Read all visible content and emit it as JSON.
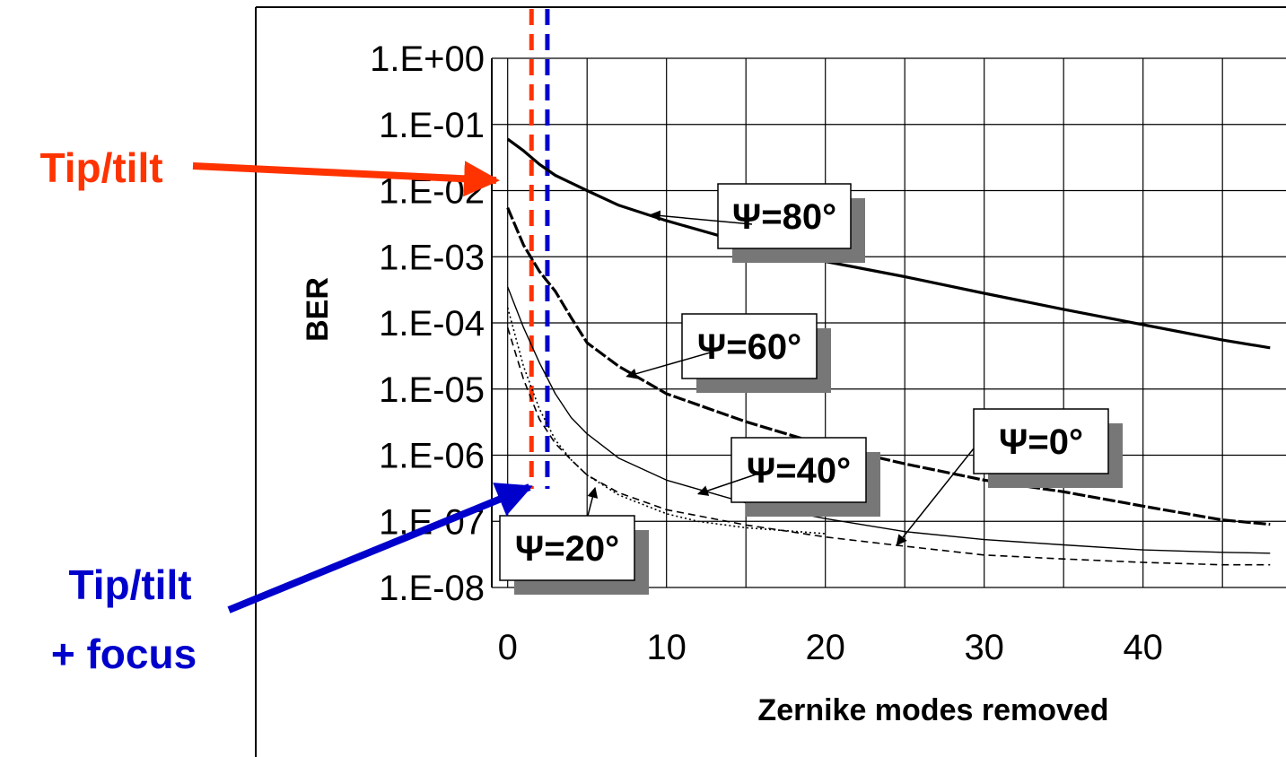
{
  "chart_data": {
    "type": "line",
    "xlabel": "Zernike modes removed",
    "ylabel": "BER",
    "x_scale": "linear",
    "y_scale": "log",
    "xlim": [
      -1,
      49
    ],
    "ylim": [
      1e-08,
      1
    ],
    "x_ticks": [
      0,
      10,
      20,
      30,
      40
    ],
    "x_tick_labels": [
      "0",
      "10",
      "20",
      "30",
      "40"
    ],
    "y_ticks": [
      1,
      0.1,
      0.01,
      0.001,
      0.0001,
      1e-05,
      1e-06,
      1e-07,
      1e-08
    ],
    "y_tick_labels": [
      "1.E+00",
      "1.E-01",
      "1.E-02",
      "1.E-03",
      "1.E-04",
      "1.E-05",
      "1.E-06",
      "1.E-07",
      "1.E-08"
    ],
    "grid": true,
    "series": [
      {
        "name": "Ψ=80°",
        "style": "solid-thick",
        "x": [
          0,
          1,
          2,
          3,
          5,
          7,
          10,
          15,
          20,
          25,
          30,
          35,
          40,
          45,
          48
        ],
        "y": [
          0.06,
          0.04,
          0.025,
          0.017,
          0.01,
          0.006,
          0.0035,
          0.0016,
          0.00085,
          0.0005,
          0.00028,
          0.00016,
          9.4e-05,
          5.5e-05,
          4.2e-05
        ]
      },
      {
        "name": "Ψ=60°",
        "style": "dashed-thick",
        "x": [
          0,
          1,
          2,
          3,
          4,
          5,
          7,
          10,
          15,
          20,
          25,
          30,
          35,
          40,
          45,
          48
        ],
        "y": [
          0.0055,
          0.0015,
          0.0006,
          0.0003,
          0.00012,
          5e-05,
          2.2e-05,
          8.5e-06,
          3.2e-06,
          1.4e-06,
          7.4e-07,
          4.2e-07,
          2.8e-07,
          1.7e-07,
          1.05e-07,
          9e-08
        ]
      },
      {
        "name": "Ψ=40°",
        "style": "solid-thin",
        "x": [
          0,
          1,
          2,
          3,
          4,
          5,
          7,
          10,
          15,
          20,
          25,
          30,
          35,
          40,
          45,
          48
        ],
        "y": [
          0.00035,
          8.5e-05,
          2.5e-05,
          8.5e-06,
          3.7e-06,
          2.1e-06,
          9e-07,
          4.2e-07,
          1.9e-07,
          1.1e-07,
          7e-08,
          5.3e-08,
          4.4e-08,
          3.7e-08,
          3.4e-08,
          3.3e-08
        ]
      },
      {
        "name": "Ψ=20°",
        "style": "dotted",
        "x": [
          0,
          1,
          2,
          3,
          4,
          5,
          7,
          10,
          12,
          15,
          20
        ],
        "y": [
          0.00017,
          2.2e-05,
          5e-06,
          1.7e-06,
          8.5e-07,
          5e-07,
          2.5e-07,
          1.3e-07,
          1e-07,
          8e-08,
          6.5e-08
        ]
      },
      {
        "name": "Ψ=0°",
        "style": "dashed-thin",
        "x": [
          0,
          1,
          2,
          3,
          4,
          5,
          7,
          10,
          15,
          20,
          25,
          30,
          35,
          40,
          45,
          48
        ],
        "y": [
          8.5e-05,
          1.4e-05,
          3.5e-06,
          1.5e-06,
          8.5e-07,
          5e-07,
          2.7e-07,
          1.5e-07,
          8.8e-08,
          5.8e-08,
          4.2e-08,
          3.1e-08,
          2.7e-08,
          2.4e-08,
          2.2e-08,
          2.2e-08
        ]
      }
    ],
    "vertical_markers": [
      {
        "label": "Tip/tilt",
        "x": 1.5,
        "color": "#ff3300"
      },
      {
        "label": "Tip/tilt + focus",
        "x": 2.5,
        "color": "#0000cc"
      }
    ]
  },
  "annotations": {
    "tiptilt_label": "Tip/tilt",
    "tiptilt_focus_line1": "Tip/tilt",
    "tiptilt_focus_line2": "+ focus"
  },
  "callouts": [
    {
      "text": "Ψ=80°",
      "series": "Ψ=80°",
      "point_x": 9,
      "point_y": 0.0043
    },
    {
      "text": "Ψ=60°",
      "series": "Ψ=60°",
      "point_x": 7.5,
      "point_y": 1.55e-05
    },
    {
      "text": "Ψ=40°",
      "series": "Ψ=40°",
      "point_x": 12,
      "point_y": 2.6e-07
    },
    {
      "text": "Ψ=20°",
      "series": "Ψ=20°",
      "point_x": 5.5,
      "point_y": 3.2e-07
    },
    {
      "text": "Ψ=0°",
      "series": "Ψ=0°",
      "point_x": 24.5,
      "point_y": 4.4e-08
    }
  ],
  "colors": {
    "tiptilt": "#ff3300",
    "tiptilt_focus": "#0000cc",
    "lines": "#000000",
    "shadow": "#777777"
  }
}
